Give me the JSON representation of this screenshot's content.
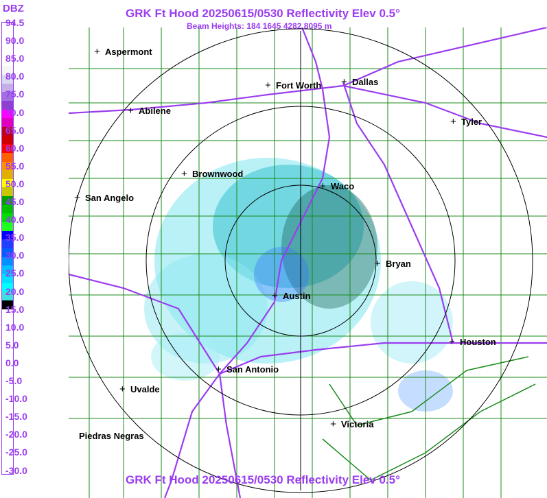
{
  "header": {
    "title": "GRK Ft Hood 20250615/0530 Reflectivity Elev 0.5°",
    "subtitle": "Beam Heights: 184 1645 4282 8095 m"
  },
  "footer": {
    "title": "GRK Ft Hood 20250615/0530 Reflectivity Elev 0.5°"
  },
  "legend": {
    "unit": "DBZ",
    "labels": [
      "94.5",
      "90.0",
      "85.0",
      "80.0",
      "75.0",
      "70.0",
      "65.0",
      "60.0",
      "55.0",
      "50.0",
      "45.0",
      "40.0",
      "35.0",
      "30.0",
      "25.0",
      "20.0",
      "15.0",
      "10.0",
      "5.0",
      "0.0",
      "-5.0",
      "-10.0",
      "-15.0",
      "-20.0",
      "-25.0",
      "-30.0"
    ],
    "colors": [
      "#ffffff",
      "#ffffff",
      "#ffffff",
      "#ffffff",
      "#ffffff",
      "#f6f6f6",
      "#d8d8f0",
      "#c4b0e8",
      "#a070e0",
      "#9040d0",
      "#ff00ff",
      "#e000c0",
      "#c00020",
      "#d00000",
      "#ff0000",
      "#ff6000",
      "#ff9000",
      "#e0b000",
      "#ffff00",
      "#c8c800",
      "#00a000",
      "#00c000",
      "#00e000",
      "#20ff20",
      "#0000ff",
      "#2040ff",
      "#0060ff",
      "#0090ff",
      "#00c0ff",
      "#00e0ff",
      "#00ffff",
      "#40e0e0",
      "#000000",
      "#ffffff",
      "#ffffff",
      "#ffffff",
      "#ffffff",
      "#ffffff",
      "#ffffff",
      "#ffffff",
      "#ffffff",
      "#ffffff",
      "#ffffff",
      "#ffffff",
      "#ffffff",
      "#ffffff",
      "#ffffff",
      "#ffffff",
      "#ffffff",
      "#ffffff",
      "#ffffff",
      "#ffffff"
    ]
  },
  "cities": [
    {
      "name": "Aspermont",
      "id": "aspermont"
    },
    {
      "name": "Fort Worth",
      "id": "fort-worth"
    },
    {
      "name": "Dallas",
      "id": "dallas"
    },
    {
      "name": "Abilene",
      "id": "abilene"
    },
    {
      "name": "Tyler",
      "id": "tyler"
    },
    {
      "name": "Brownwood",
      "id": "brownwood"
    },
    {
      "name": "Waco",
      "id": "waco"
    },
    {
      "name": "San Angelo",
      "id": "san-angelo"
    },
    {
      "name": "Bryan",
      "id": "bryan"
    },
    {
      "name": "Austin",
      "id": "austin"
    },
    {
      "name": "Houston",
      "id": "houston"
    },
    {
      "name": "San Antonio",
      "id": "san-antonio"
    },
    {
      "name": "Uvalde",
      "id": "uvalde"
    },
    {
      "name": "Victoria",
      "id": "victoria"
    },
    {
      "name": "Piedras Negras",
      "id": "piedras-negras"
    }
  ],
  "colors": {
    "accent": "#9a3cf0",
    "county_lines": "#1a8a1a",
    "highways": "#9a3cf0",
    "range_rings": "#000000"
  }
}
